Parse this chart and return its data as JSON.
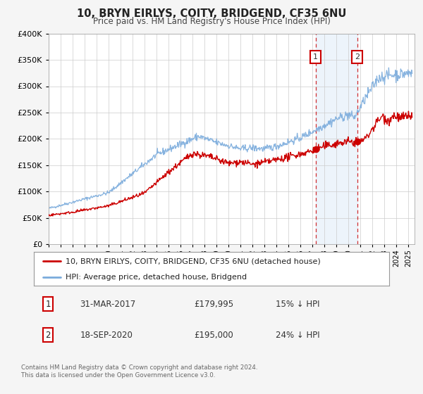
{
  "title": "10, BRYN EIRLYS, COITY, BRIDGEND, CF35 6NU",
  "subtitle": "Price paid vs. HM Land Registry's House Price Index (HPI)",
  "ylim": [
    0,
    400000
  ],
  "yticks": [
    0,
    50000,
    100000,
    150000,
    200000,
    250000,
    300000,
    350000,
    400000
  ],
  "xlim_start": 1995.0,
  "xlim_end": 2025.5,
  "marker1_x": 2017.25,
  "marker1_y": 179995,
  "marker1_date": "31-MAR-2017",
  "marker1_price": "£179,995",
  "marker1_hpi": "15% ↓ HPI",
  "marker2_x": 2020.72,
  "marker2_y": 195000,
  "marker2_date": "18-SEP-2020",
  "marker2_price": "£195,000",
  "marker2_hpi": "24% ↓ HPI",
  "legend_line1": "10, BRYN EIRLYS, COITY, BRIDGEND, CF35 6NU (detached house)",
  "legend_line2": "HPI: Average price, detached house, Bridgend",
  "footer1": "Contains HM Land Registry data © Crown copyright and database right 2024.",
  "footer2": "This data is licensed under the Open Government Licence v3.0.",
  "property_color": "#cc0000",
  "hpi_color": "#7aabdc",
  "background_color": "#f5f5f5",
  "plot_bg_color": "#ffffff",
  "shade_color": "#cce0f5"
}
